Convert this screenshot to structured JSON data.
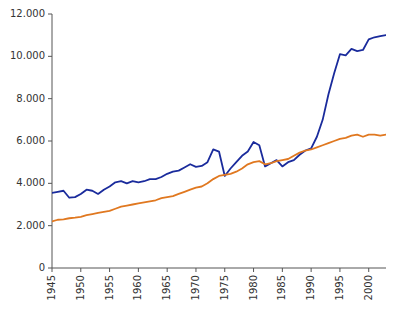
{
  "chart_data": {
    "type": "line",
    "x": [
      1945,
      1946,
      1947,
      1948,
      1949,
      1950,
      1951,
      1952,
      1953,
      1954,
      1955,
      1956,
      1957,
      1958,
      1959,
      1960,
      1961,
      1962,
      1963,
      1964,
      1965,
      1966,
      1967,
      1968,
      1969,
      1970,
      1971,
      1972,
      1973,
      1974,
      1975,
      1976,
      1977,
      1978,
      1979,
      1980,
      1981,
      1982,
      1983,
      1984,
      1985,
      1986,
      1987,
      1988,
      1989,
      1990,
      1991,
      1992,
      1993,
      1994,
      1995,
      1996,
      1997,
      1998,
      1999,
      2000,
      2001,
      2002,
      2003
    ],
    "series": [
      {
        "color": "#1a2b9c",
        "values": [
          3550,
          3600,
          3650,
          3320,
          3350,
          3500,
          3700,
          3650,
          3500,
          3700,
          3850,
          4050,
          4100,
          4000,
          4100,
          4050,
          4100,
          4200,
          4200,
          4300,
          4450,
          4550,
          4600,
          4750,
          4900,
          4780,
          4820,
          5000,
          5600,
          5500,
          4350,
          4700,
          5000,
          5300,
          5500,
          5950,
          5800,
          4800,
          4950,
          5100,
          4800,
          5000,
          5100,
          5350,
          5550,
          5650,
          6200,
          7000,
          8200,
          9200,
          10100,
          10050,
          10350,
          10250,
          10300,
          10800,
          10900,
          10950,
          11000
        ]
      },
      {
        "color": "#e07820",
        "values": [
          2200,
          2280,
          2300,
          2350,
          2380,
          2420,
          2500,
          2550,
          2600,
          2650,
          2700,
          2800,
          2900,
          2950,
          3000,
          3050,
          3100,
          3150,
          3200,
          3300,
          3350,
          3400,
          3500,
          3600,
          3700,
          3800,
          3850,
          4000,
          4200,
          4350,
          4400,
          4450,
          4550,
          4700,
          4900,
          5000,
          5050,
          4900,
          4950,
          5050,
          5100,
          5150,
          5300,
          5450,
          5550,
          5600,
          5700,
          5800,
          5900,
          6000,
          6100,
          6150,
          6250,
          6300,
          6200,
          6300,
          6300,
          6250,
          6300
        ]
      }
    ],
    "xlim": [
      1945,
      2003
    ],
    "xticks": [
      1945,
      1950,
      1955,
      1960,
      1965,
      1970,
      1975,
      1980,
      1985,
      1990,
      1995,
      2000
    ],
    "ylim": [
      0,
      12000
    ],
    "yticks": [
      0,
      {
        "value": 2000,
        "label": "2.000"
      },
      {
        "value": 4000,
        "label": "4.000"
      },
      {
        "value": 6000,
        "label": "6.000"
      },
      {
        "value": 8000,
        "label": "8.000"
      },
      {
        "value": 10000,
        "label": "10.000"
      },
      {
        "value": 12000,
        "label": "12.000"
      }
    ],
    "grid": false
  }
}
